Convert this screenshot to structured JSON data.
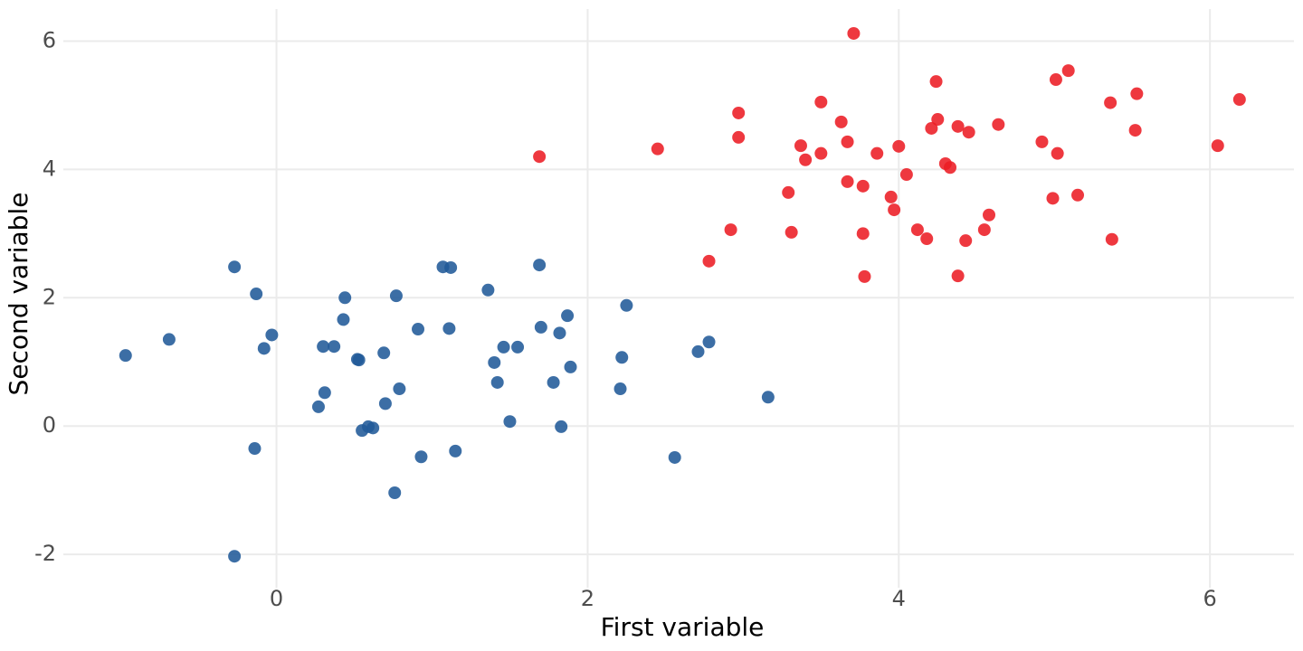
{
  "chart_data": {
    "type": "scatter",
    "x_label": "First variable",
    "y_label": "Second variable",
    "xlim": [
      -1.37,
      6.54
    ],
    "ylim": [
      -2.52,
      6.5
    ],
    "xticks": [
      0,
      2,
      4,
      6
    ],
    "yticks": [
      -2,
      0,
      2,
      4,
      6
    ],
    "grid": true,
    "series": [
      {
        "color": "#215a98",
        "x": [
          -0.97,
          -0.69,
          -0.27,
          -0.13,
          -0.03,
          -0.08,
          -0.14,
          -0.27,
          0.3,
          0.37,
          0.31,
          0.27,
          0.44,
          0.43,
          0.52,
          0.53,
          0.55,
          0.59,
          0.62,
          0.69,
          0.7,
          0.77,
          0.79,
          0.76,
          0.91,
          0.93,
          1.07,
          1.12,
          1.11,
          1.15,
          1.36,
          1.4,
          1.42,
          1.46,
          1.55,
          1.5,
          1.69,
          1.7,
          1.82,
          1.87,
          1.89,
          1.78,
          1.83,
          2.25,
          2.22,
          2.21,
          2.56,
          2.71,
          2.78,
          3.16
        ],
        "values": [
          1.1,
          1.35,
          2.48,
          2.06,
          1.42,
          1.21,
          -0.35,
          -2.03,
          1.24,
          1.24,
          0.52,
          0.3,
          2.0,
          1.66,
          1.04,
          1.03,
          -0.07,
          -0.01,
          -0.03,
          1.14,
          0.35,
          2.03,
          0.58,
          -1.04,
          1.51,
          -0.48,
          2.48,
          2.47,
          1.52,
          -0.39,
          2.12,
          0.99,
          0.68,
          1.23,
          1.23,
          0.07,
          2.51,
          1.54,
          1.45,
          1.72,
          0.92,
          0.68,
          -0.01,
          1.88,
          1.07,
          0.58,
          -0.49,
          1.16,
          1.31,
          0.45
        ]
      },
      {
        "color": "#ec1c24",
        "x": [
          1.69,
          2.45,
          2.78,
          2.92,
          2.97,
          2.97,
          3.29,
          3.31,
          3.37,
          3.4,
          3.5,
          3.5,
          3.63,
          3.67,
          3.67,
          3.71,
          3.77,
          3.77,
          3.78,
          3.86,
          3.95,
          3.97,
          4.0,
          4.05,
          4.12,
          4.18,
          4.21,
          4.24,
          4.25,
          4.3,
          4.33,
          4.38,
          4.38,
          4.43,
          4.45,
          4.55,
          4.58,
          4.64,
          4.92,
          4.99,
          5.01,
          5.02,
          5.09,
          5.15,
          5.36,
          5.37,
          5.52,
          5.53,
          6.05,
          6.19
        ],
        "values": [
          4.2,
          4.32,
          2.57,
          3.06,
          4.88,
          4.5,
          3.64,
          3.02,
          4.37,
          4.15,
          4.25,
          5.05,
          4.74,
          4.43,
          3.81,
          6.12,
          3.74,
          3.0,
          2.33,
          4.25,
          3.57,
          3.37,
          4.36,
          3.92,
          3.06,
          2.92,
          4.64,
          5.37,
          4.78,
          4.09,
          4.03,
          4.67,
          2.34,
          2.89,
          4.58,
          3.06,
          3.29,
          4.7,
          4.43,
          3.55,
          5.4,
          4.25,
          5.54,
          3.6,
          5.04,
          2.91,
          4.61,
          5.18,
          4.37,
          5.09
        ]
      }
    ]
  }
}
